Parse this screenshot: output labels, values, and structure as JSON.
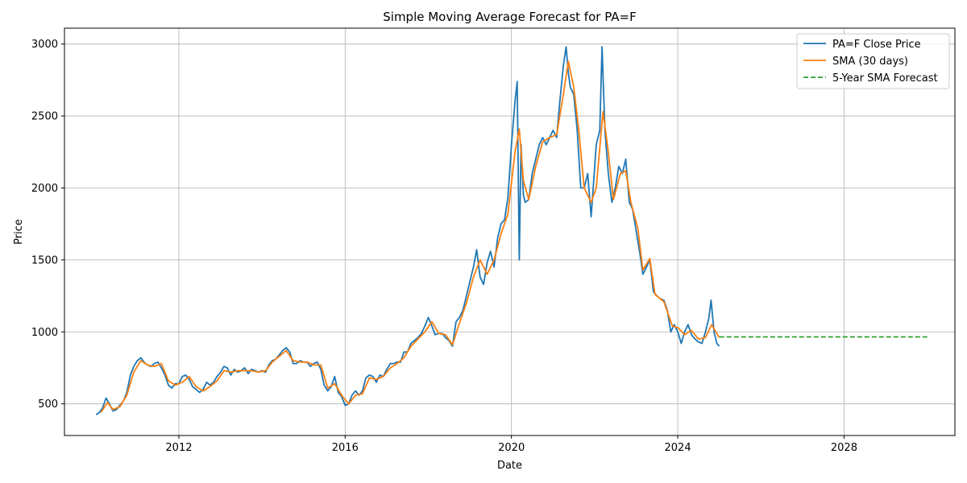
{
  "chart_data": {
    "type": "line",
    "title": "Simple Moving Average Forecast for PA=F",
    "xlabel": "Date",
    "ylabel": "Price",
    "xlim": [
      "2009-04-01",
      "2030-09-01"
    ],
    "ylim": [
      280,
      3110
    ],
    "grid": true,
    "legend_position": "top-right",
    "x_ticks": [
      "2012",
      "2016",
      "2020",
      "2024",
      "2028"
    ],
    "y_ticks": [
      500,
      1000,
      1500,
      2000,
      2500,
      3000
    ],
    "colors": {
      "close": "#1f77b4",
      "sma": "#ff7f0e",
      "forecast": "#2ca02c"
    },
    "series": [
      {
        "name": "PA=F Close Price",
        "style": "solid",
        "points": [
          [
            "2010-01-04",
            425
          ],
          [
            "2010-02-01",
            440
          ],
          [
            "2010-03-01",
            470
          ],
          [
            "2010-04-01",
            540
          ],
          [
            "2010-05-01",
            500
          ],
          [
            "2010-06-01",
            450
          ],
          [
            "2010-07-01",
            460
          ],
          [
            "2010-08-01",
            490
          ],
          [
            "2010-09-01",
            520
          ],
          [
            "2010-10-01",
            580
          ],
          [
            "2010-11-01",
            700
          ],
          [
            "2010-12-01",
            760
          ],
          [
            "2011-01-01",
            800
          ],
          [
            "2011-02-01",
            820
          ],
          [
            "2011-03-01",
            790
          ],
          [
            "2011-04-01",
            770
          ],
          [
            "2011-05-01",
            760
          ],
          [
            "2011-06-01",
            780
          ],
          [
            "2011-07-01",
            790
          ],
          [
            "2011-08-01",
            750
          ],
          [
            "2011-09-01",
            700
          ],
          [
            "2011-10-01",
            630
          ],
          [
            "2011-11-01",
            610
          ],
          [
            "2011-12-01",
            640
          ],
          [
            "2012-01-01",
            640
          ],
          [
            "2012-02-01",
            690
          ],
          [
            "2012-03-01",
            700
          ],
          [
            "2012-04-01",
            670
          ],
          [
            "2012-05-01",
            620
          ],
          [
            "2012-06-01",
            600
          ],
          [
            "2012-07-01",
            580
          ],
          [
            "2012-08-01",
            600
          ],
          [
            "2012-09-01",
            650
          ],
          [
            "2012-10-01",
            630
          ],
          [
            "2012-11-01",
            650
          ],
          [
            "2012-12-01",
            690
          ],
          [
            "2013-01-01",
            720
          ],
          [
            "2013-02-01",
            760
          ],
          [
            "2013-03-01",
            750
          ],
          [
            "2013-04-01",
            700
          ],
          [
            "2013-05-01",
            740
          ],
          [
            "2013-06-01",
            720
          ],
          [
            "2013-07-01",
            730
          ],
          [
            "2013-08-01",
            750
          ],
          [
            "2013-09-01",
            710
          ],
          [
            "2013-10-01",
            740
          ],
          [
            "2013-11-01",
            730
          ],
          [
            "2013-12-01",
            720
          ],
          [
            "2014-01-01",
            730
          ],
          [
            "2014-02-01",
            720
          ],
          [
            "2014-03-01",
            770
          ],
          [
            "2014-04-01",
            800
          ],
          [
            "2014-05-01",
            810
          ],
          [
            "2014-06-01",
            840
          ],
          [
            "2014-07-01",
            870
          ],
          [
            "2014-08-01",
            890
          ],
          [
            "2014-09-01",
            860
          ],
          [
            "2014-10-01",
            780
          ],
          [
            "2014-11-01",
            780
          ],
          [
            "2014-12-01",
            800
          ],
          [
            "2015-01-01",
            790
          ],
          [
            "2015-02-01",
            790
          ],
          [
            "2015-03-01",
            760
          ],
          [
            "2015-04-01",
            780
          ],
          [
            "2015-05-01",
            790
          ],
          [
            "2015-06-01",
            740
          ],
          [
            "2015-07-01",
            630
          ],
          [
            "2015-08-01",
            590
          ],
          [
            "2015-09-01",
            620
          ],
          [
            "2015-10-01",
            690
          ],
          [
            "2015-11-01",
            580
          ],
          [
            "2015-12-01",
            550
          ],
          [
            "2016-01-01",
            490
          ],
          [
            "2016-02-01",
            500
          ],
          [
            "2016-03-01",
            560
          ],
          [
            "2016-04-01",
            590
          ],
          [
            "2016-05-01",
            560
          ],
          [
            "2016-06-01",
            590
          ],
          [
            "2016-07-01",
            680
          ],
          [
            "2016-08-01",
            700
          ],
          [
            "2016-09-01",
            690
          ],
          [
            "2016-10-01",
            650
          ],
          [
            "2016-11-01",
            700
          ],
          [
            "2016-12-01",
            690
          ],
          [
            "2017-01-01",
            740
          ],
          [
            "2017-02-01",
            780
          ],
          [
            "2017-03-01",
            780
          ],
          [
            "2017-04-01",
            790
          ],
          [
            "2017-05-01",
            790
          ],
          [
            "2017-06-01",
            860
          ],
          [
            "2017-07-01",
            860
          ],
          [
            "2017-08-01",
            920
          ],
          [
            "2017-09-01",
            940
          ],
          [
            "2017-10-01",
            960
          ],
          [
            "2017-11-01",
            990
          ],
          [
            "2017-12-01",
            1040
          ],
          [
            "2018-01-01",
            1100
          ],
          [
            "2018-02-01",
            1040
          ],
          [
            "2018-03-01",
            980
          ],
          [
            "2018-04-01",
            990
          ],
          [
            "2018-05-01",
            990
          ],
          [
            "2018-06-01",
            960
          ],
          [
            "2018-07-01",
            940
          ],
          [
            "2018-08-01",
            900
          ],
          [
            "2018-09-01",
            1070
          ],
          [
            "2018-10-01",
            1100
          ],
          [
            "2018-11-01",
            1150
          ],
          [
            "2018-12-01",
            1250
          ],
          [
            "2019-01-01",
            1350
          ],
          [
            "2019-02-01",
            1450
          ],
          [
            "2019-03-01",
            1570
          ],
          [
            "2019-04-01",
            1380
          ],
          [
            "2019-05-01",
            1330
          ],
          [
            "2019-06-01",
            1480
          ],
          [
            "2019-07-01",
            1560
          ],
          [
            "2019-08-01",
            1450
          ],
          [
            "2019-09-01",
            1650
          ],
          [
            "2019-10-01",
            1750
          ],
          [
            "2019-11-01",
            1780
          ],
          [
            "2019-12-01",
            1930
          ],
          [
            "2020-01-01",
            2300
          ],
          [
            "2020-02-01",
            2600
          ],
          [
            "2020-02-20",
            2740
          ],
          [
            "2020-03-10",
            1500
          ],
          [
            "2020-03-25",
            2300
          ],
          [
            "2020-04-15",
            1950
          ],
          [
            "2020-05-01",
            1900
          ],
          [
            "2020-06-01",
            1920
          ],
          [
            "2020-07-01",
            2100
          ],
          [
            "2020-08-01",
            2200
          ],
          [
            "2020-09-01",
            2300
          ],
          [
            "2020-10-01",
            2350
          ],
          [
            "2020-11-01",
            2300
          ],
          [
            "2020-12-01",
            2350
          ],
          [
            "2021-01-01",
            2400
          ],
          [
            "2021-02-01",
            2350
          ],
          [
            "2021-03-01",
            2600
          ],
          [
            "2021-04-01",
            2850
          ],
          [
            "2021-04-25",
            2980
          ],
          [
            "2021-05-15",
            2800
          ],
          [
            "2021-06-01",
            2700
          ],
          [
            "2021-07-01",
            2650
          ],
          [
            "2021-08-01",
            2400
          ],
          [
            "2021-09-01",
            2000
          ],
          [
            "2021-10-01",
            2000
          ],
          [
            "2021-11-01",
            2100
          ],
          [
            "2021-12-01",
            1800
          ],
          [
            "2022-01-15",
            2300
          ],
          [
            "2022-02-15",
            2400
          ],
          [
            "2022-03-07",
            2980
          ],
          [
            "2022-04-01",
            2400
          ],
          [
            "2022-05-01",
            2100
          ],
          [
            "2022-06-01",
            1900
          ],
          [
            "2022-07-01",
            2000
          ],
          [
            "2022-08-01",
            2150
          ],
          [
            "2022-09-01",
            2100
          ],
          [
            "2022-10-01",
            2200
          ],
          [
            "2022-11-01",
            1900
          ],
          [
            "2022-12-01",
            1850
          ],
          [
            "2023-01-01",
            1700
          ],
          [
            "2023-02-01",
            1550
          ],
          [
            "2023-03-01",
            1400
          ],
          [
            "2023-04-01",
            1450
          ],
          [
            "2023-05-01",
            1500
          ],
          [
            "2023-06-01",
            1280
          ],
          [
            "2023-07-01",
            1250
          ],
          [
            "2023-08-01",
            1230
          ],
          [
            "2023-09-01",
            1220
          ],
          [
            "2023-10-01",
            1150
          ],
          [
            "2023-11-01",
            1000
          ],
          [
            "2023-12-01",
            1050
          ],
          [
            "2024-01-01",
            1000
          ],
          [
            "2024-02-01",
            920
          ],
          [
            "2024-03-01",
            1000
          ],
          [
            "2024-04-01",
            1050
          ],
          [
            "2024-05-01",
            980
          ],
          [
            "2024-06-01",
            950
          ],
          [
            "2024-07-01",
            930
          ],
          [
            "2024-08-01",
            920
          ],
          [
            "2024-09-01",
            1000
          ],
          [
            "2024-10-01",
            1100
          ],
          [
            "2024-10-20",
            1220
          ],
          [
            "2024-11-15",
            1000
          ],
          [
            "2024-12-10",
            920
          ],
          [
            "2024-12-31",
            900
          ]
        ]
      },
      {
        "name": "SMA (30 days)",
        "style": "solid",
        "points": [
          [
            "2010-02-15",
            440
          ],
          [
            "2010-04-15",
            510
          ],
          [
            "2010-06-01",
            460
          ],
          [
            "2010-08-01",
            480
          ],
          [
            "2010-10-01",
            560
          ],
          [
            "2010-12-01",
            720
          ],
          [
            "2011-02-01",
            800
          ],
          [
            "2011-04-01",
            770
          ],
          [
            "2011-06-01",
            760
          ],
          [
            "2011-08-01",
            780
          ],
          [
            "2011-10-01",
            660
          ],
          [
            "2011-12-01",
            630
          ],
          [
            "2012-02-01",
            650
          ],
          [
            "2012-04-01",
            690
          ],
          [
            "2012-06-01",
            620
          ],
          [
            "2012-08-01",
            590
          ],
          [
            "2012-10-01",
            620
          ],
          [
            "2012-12-01",
            660
          ],
          [
            "2013-02-01",
            730
          ],
          [
            "2013-04-01",
            720
          ],
          [
            "2013-06-01",
            730
          ],
          [
            "2013-08-01",
            730
          ],
          [
            "2013-10-01",
            730
          ],
          [
            "2013-12-01",
            720
          ],
          [
            "2014-02-01",
            730
          ],
          [
            "2014-04-01",
            790
          ],
          [
            "2014-06-01",
            830
          ],
          [
            "2014-08-01",
            870
          ],
          [
            "2014-10-01",
            800
          ],
          [
            "2014-12-01",
            790
          ],
          [
            "2015-02-01",
            790
          ],
          [
            "2015-04-01",
            770
          ],
          [
            "2015-06-01",
            770
          ],
          [
            "2015-08-01",
            610
          ],
          [
            "2015-10-01",
            640
          ],
          [
            "2015-12-01",
            560
          ],
          [
            "2016-02-01",
            500
          ],
          [
            "2016-04-01",
            560
          ],
          [
            "2016-06-01",
            570
          ],
          [
            "2016-08-01",
            680
          ],
          [
            "2016-10-01",
            670
          ],
          [
            "2016-12-01",
            690
          ],
          [
            "2017-02-01",
            750
          ],
          [
            "2017-04-01",
            780
          ],
          [
            "2017-06-01",
            820
          ],
          [
            "2017-08-01",
            900
          ],
          [
            "2017-10-01",
            950
          ],
          [
            "2017-12-01",
            1000
          ],
          [
            "2018-02-01",
            1070
          ],
          [
            "2018-04-01",
            990
          ],
          [
            "2018-06-01",
            980
          ],
          [
            "2018-08-01",
            910
          ],
          [
            "2018-10-01",
            1060
          ],
          [
            "2018-12-01",
            1200
          ],
          [
            "2019-02-01",
            1380
          ],
          [
            "2019-04-01",
            1500
          ],
          [
            "2019-06-01",
            1400
          ],
          [
            "2019-08-01",
            1500
          ],
          [
            "2019-10-01",
            1680
          ],
          [
            "2019-12-01",
            1820
          ],
          [
            "2020-02-01",
            2250
          ],
          [
            "2020-03-10",
            2410
          ],
          [
            "2020-04-15",
            2050
          ],
          [
            "2020-06-01",
            1920
          ],
          [
            "2020-08-01",
            2150
          ],
          [
            "2020-10-01",
            2320
          ],
          [
            "2020-12-01",
            2350
          ],
          [
            "2021-02-01",
            2370
          ],
          [
            "2021-04-01",
            2650
          ],
          [
            "2021-05-15",
            2880
          ],
          [
            "2021-07-01",
            2700
          ],
          [
            "2021-08-15",
            2400
          ],
          [
            "2021-10-01",
            2000
          ],
          [
            "2021-12-01",
            1900
          ],
          [
            "2022-01-15",
            2000
          ],
          [
            "2022-03-15",
            2530
          ],
          [
            "2022-05-01",
            2250
          ],
          [
            "2022-06-15",
            1920
          ],
          [
            "2022-08-15",
            2100
          ],
          [
            "2022-10-01",
            2120
          ],
          [
            "2022-11-15",
            1900
          ],
          [
            "2023-01-15",
            1720
          ],
          [
            "2023-03-01",
            1430
          ],
          [
            "2023-05-01",
            1510
          ],
          [
            "2023-06-15",
            1260
          ],
          [
            "2023-09-01",
            1210
          ],
          [
            "2023-11-15",
            1040
          ],
          [
            "2024-01-01",
            1030
          ],
          [
            "2024-03-01",
            980
          ],
          [
            "2024-05-01",
            1010
          ],
          [
            "2024-07-01",
            950
          ],
          [
            "2024-09-01",
            960
          ],
          [
            "2024-10-25",
            1050
          ],
          [
            "2024-12-31",
            960
          ]
        ]
      },
      {
        "name": "5-Year SMA Forecast",
        "style": "dashed",
        "points": [
          [
            "2025-01-01",
            965
          ],
          [
            "2030-01-01",
            965
          ]
        ]
      }
    ]
  }
}
